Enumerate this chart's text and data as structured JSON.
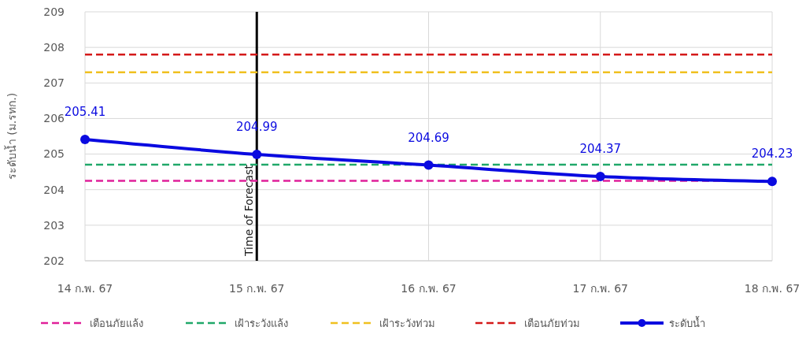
{
  "chart_data": {
    "type": "line",
    "ylabel": "ระดับน้ำ (ม.รทก.)",
    "categories": [
      "14 ก.พ. 67",
      "15 ก.พ. 67",
      "16 ก.พ. 67",
      "17 ก.พ. 67",
      "18 ก.พ. 67"
    ],
    "series": [
      {
        "name": "เตือนภัยแล้ง",
        "color": "#e0209a",
        "values": [
          204.25,
          204.25,
          204.25,
          204.25,
          204.25
        ],
        "line_style": "dashed"
      },
      {
        "name": "เฝ้าระวังแล้ง",
        "color": "#20a86a",
        "values": [
          204.7,
          204.7,
          204.7,
          204.7,
          204.7
        ],
        "line_style": "dashed"
      },
      {
        "name": "เฝ้าระวังท่วม",
        "color": "#f0c020",
        "values": [
          207.3,
          207.3,
          207.3,
          207.3,
          207.3
        ],
        "line_style": "dashed"
      },
      {
        "name": "เตือนภัยท่วม",
        "color": "#d41a1a",
        "values": [
          207.8,
          207.8,
          207.8,
          207.8,
          207.8
        ],
        "line_style": "dashed"
      },
      {
        "name": "ระดับน้ำ",
        "color": "#0a0ae0",
        "values": [
          205.41,
          204.99,
          204.69,
          204.37,
          204.23
        ],
        "line_style": "solid",
        "marker": "circle",
        "data_labels": true
      }
    ],
    "ylim": [
      202,
      209
    ],
    "yticks": [
      202,
      203,
      204,
      205,
      206,
      207,
      208,
      209
    ],
    "ref_lines": [
      {
        "axis": "x",
        "value": "15 ก.พ. 67",
        "label": "Time of Forecast",
        "color": "#000000"
      }
    ],
    "grid": true,
    "legend": "bottom"
  }
}
